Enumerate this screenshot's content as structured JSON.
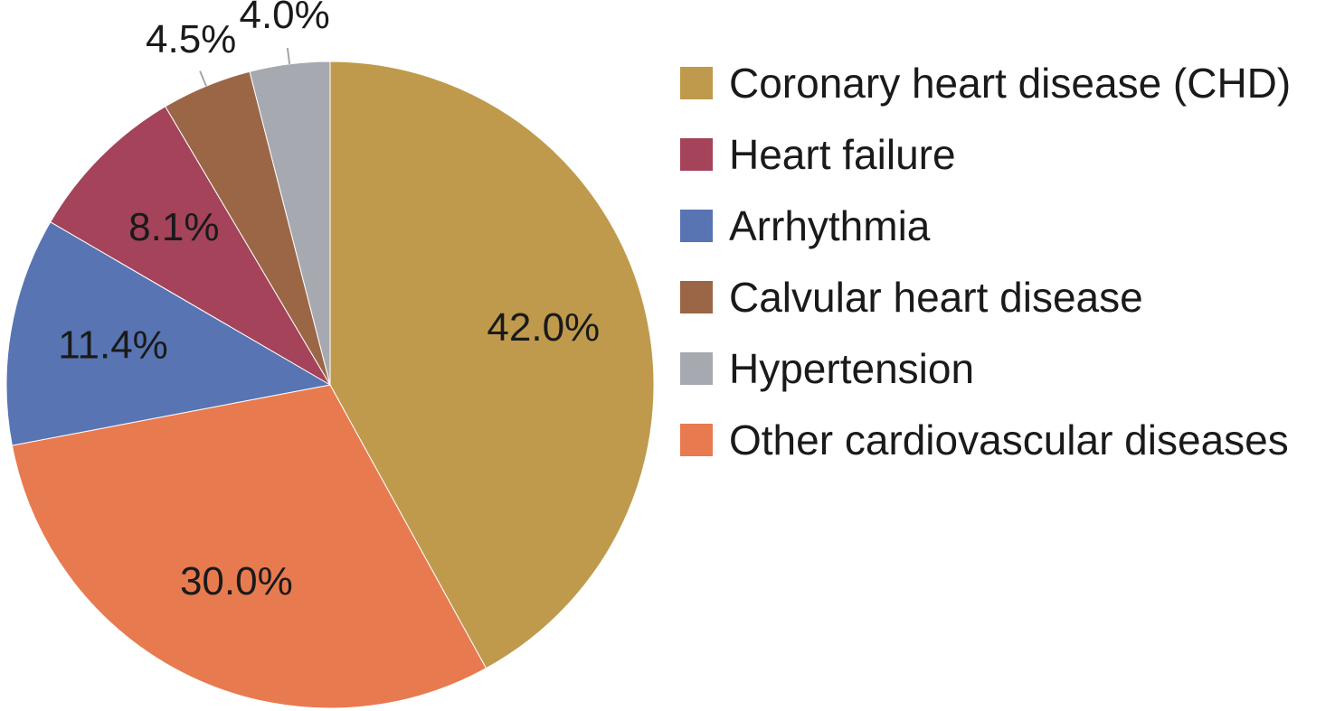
{
  "chart_data": {
    "type": "pie",
    "title": "",
    "start_angle": "12 o'clock",
    "direction": "clockwise",
    "legend_position": "right",
    "label_unit": "%",
    "slices": [
      {
        "name": "Coronary heart disease (CHD)",
        "value": 42.0,
        "label": "42.0%",
        "color": "#BF9A4C"
      },
      {
        "name": "Other cardiovascular diseases",
        "value": 30.0,
        "label": "30.0%",
        "color": "#E87A50"
      },
      {
        "name": "Arrhythmia",
        "value": 11.4,
        "label": "11.4%",
        "color": "#5874B2"
      },
      {
        "name": "Heart failure",
        "value": 8.1,
        "label": "8.1%",
        "color": "#A4435A"
      },
      {
        "name": "Calvular heart disease",
        "value": 4.5,
        "label": "4.5%",
        "color": "#9A6646"
      },
      {
        "name": "Hypertension",
        "value": 4.0,
        "label": "4.0%",
        "color": "#A7A9B1"
      }
    ],
    "legend": [
      {
        "name": "Coronary heart disease (CHD)",
        "color": "#BF9A4C"
      },
      {
        "name": "Heart failure",
        "color": "#A4435A"
      },
      {
        "name": "Arrhythmia",
        "color": "#5874B2"
      },
      {
        "name": "Calvular heart disease",
        "color": "#9A6646"
      },
      {
        "name": "Hypertension",
        "color": "#A7A9B1"
      },
      {
        "name": "Other cardiovascular diseases",
        "color": "#E87A50"
      }
    ]
  }
}
